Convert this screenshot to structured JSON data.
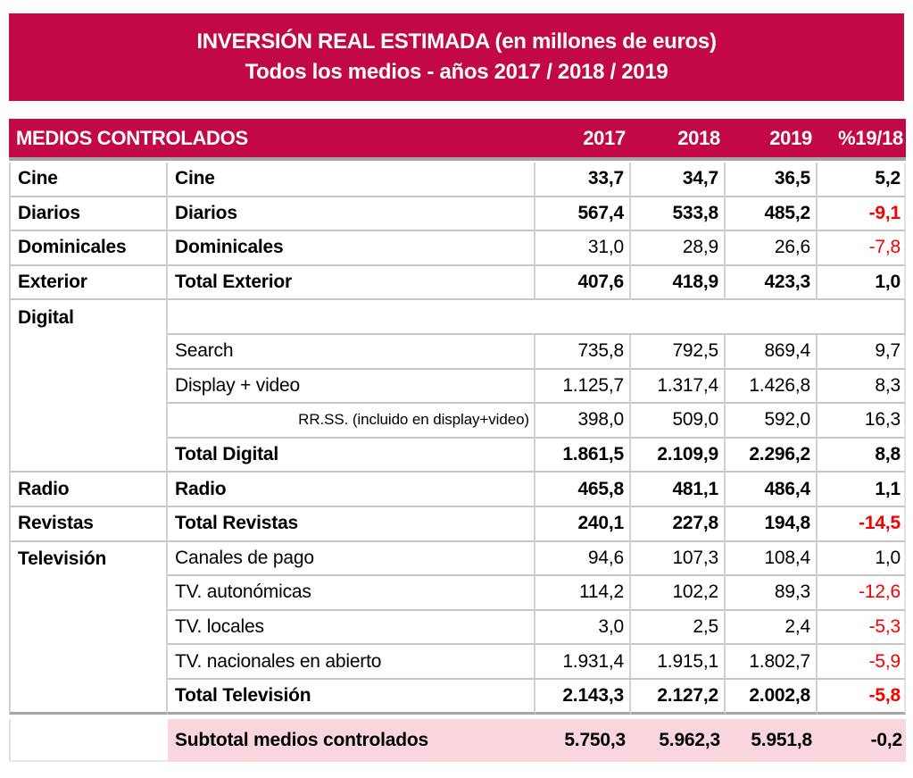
{
  "colors": {
    "accent": "#C20945",
    "subtotal_bg": "#F9D6DE",
    "negative": "#F50000",
    "grid_line": "#C6C6C6",
    "heavy_line": "#A6A6A6",
    "text": "#000000",
    "header_text": "#FFFFFF"
  },
  "banner": {
    "line1": "INVERSIÓN REAL ESTIMADA (en millones de euros)",
    "line2": "Todos los medios - años 2017 / 2018 / 2019"
  },
  "header": {
    "label": "MEDIOS CONTROLADOS",
    "columns": [
      "2017",
      "2018",
      "2019",
      "%19/18"
    ]
  },
  "table": {
    "rows": [
      {
        "group": "Cine",
        "label": "Cine",
        "values": [
          "33,7",
          "34,7",
          "36,5"
        ],
        "pct": "5,2",
        "bold": true,
        "label_bold": true,
        "pct_red": false,
        "group_border": true
      },
      {
        "group": "Diarios",
        "label": "Diarios",
        "values": [
          "567,4",
          "533,8",
          "485,2"
        ],
        "pct": "-9,1",
        "bold": true,
        "label_bold": true,
        "pct_red": true,
        "group_border": true
      },
      {
        "group": "Dominicales",
        "label": "Dominicales",
        "values": [
          "31,0",
          "28,9",
          "26,6"
        ],
        "pct": "-7,8",
        "bold": false,
        "label_bold": true,
        "pct_red": true,
        "group_border": true
      },
      {
        "group": "Exterior",
        "label": "Total Exterior",
        "values": [
          "407,6",
          "418,9",
          "423,3"
        ],
        "pct": "1,0",
        "bold": true,
        "label_bold": true,
        "pct_red": false,
        "group_border": true
      },
      {
        "group": "Digital",
        "label": "",
        "values": [
          "",
          "",
          ""
        ],
        "pct": "",
        "bold": false,
        "label_bold": true,
        "pct_red": false,
        "group_border": false,
        "merged_empty": true
      },
      {
        "group": "",
        "label": "Search",
        "values": [
          "735,8",
          "792,5",
          "869,4"
        ],
        "pct": "9,7",
        "bold": false,
        "label_bold": false,
        "pct_red": false,
        "group_border": false
      },
      {
        "group": "",
        "label": "Display + video",
        "values": [
          "1.125,7",
          "1.317,4",
          "1.426,8"
        ],
        "pct": "8,3",
        "bold": false,
        "label_bold": false,
        "pct_red": false,
        "group_border": false
      },
      {
        "group": "",
        "label": "RR.SS. (incluido en display+video)",
        "values": [
          "398,0",
          "509,0",
          "592,0"
        ],
        "pct": "16,3",
        "bold": false,
        "label_bold": false,
        "pct_red": false,
        "group_border": false,
        "small": true
      },
      {
        "group": "",
        "label": "Total Digital",
        "values": [
          "1.861,5",
          "2.109,9",
          "2.296,2"
        ],
        "pct": "8,8",
        "bold": true,
        "label_bold": true,
        "pct_red": false,
        "group_border": true
      },
      {
        "group": "Radio",
        "label": "Radio",
        "values": [
          "465,8",
          "481,1",
          "486,4"
        ],
        "pct": "1,1",
        "bold": true,
        "label_bold": true,
        "pct_red": false,
        "group_border": true
      },
      {
        "group": "Revistas",
        "label": "Total Revistas",
        "values": [
          "240,1",
          "227,8",
          "194,8"
        ],
        "pct": "-14,5",
        "bold": true,
        "label_bold": true,
        "pct_red": true,
        "group_border": true
      },
      {
        "group": "Televisión",
        "label": "Canales de pago",
        "values": [
          "94,6",
          "107,3",
          "108,4"
        ],
        "pct": "1,0",
        "bold": false,
        "label_bold": false,
        "pct_red": false,
        "group_border": false
      },
      {
        "group": "",
        "label": "TV. autonómicas",
        "values": [
          "114,2",
          "102,2",
          "89,3"
        ],
        "pct": "-12,6",
        "bold": false,
        "label_bold": false,
        "pct_red": true,
        "group_border": false
      },
      {
        "group": "",
        "label": "TV. locales",
        "values": [
          "3,0",
          "2,5",
          "2,4"
        ],
        "pct": "-5,3",
        "bold": false,
        "label_bold": false,
        "pct_red": true,
        "group_border": false
      },
      {
        "group": "",
        "label": "TV. nacionales en abierto",
        "values": [
          "1.931,4",
          "1.915,1",
          "1.802,7"
        ],
        "pct": "-5,9",
        "bold": false,
        "label_bold": false,
        "pct_red": true,
        "group_border": false
      },
      {
        "group": "",
        "label": "Total Televisión",
        "values": [
          "2.143,3",
          "2.127,2",
          "2.002,8"
        ],
        "pct": "-5,8",
        "bold": true,
        "label_bold": true,
        "pct_red": true,
        "group_border": true,
        "section_end": true
      }
    ],
    "subtotal": {
      "label": "Subtotal medios controlados",
      "values": [
        "5.750,3",
        "5.962,3",
        "5.951,8"
      ],
      "pct": "-0,2",
      "pct_red": false
    }
  }
}
